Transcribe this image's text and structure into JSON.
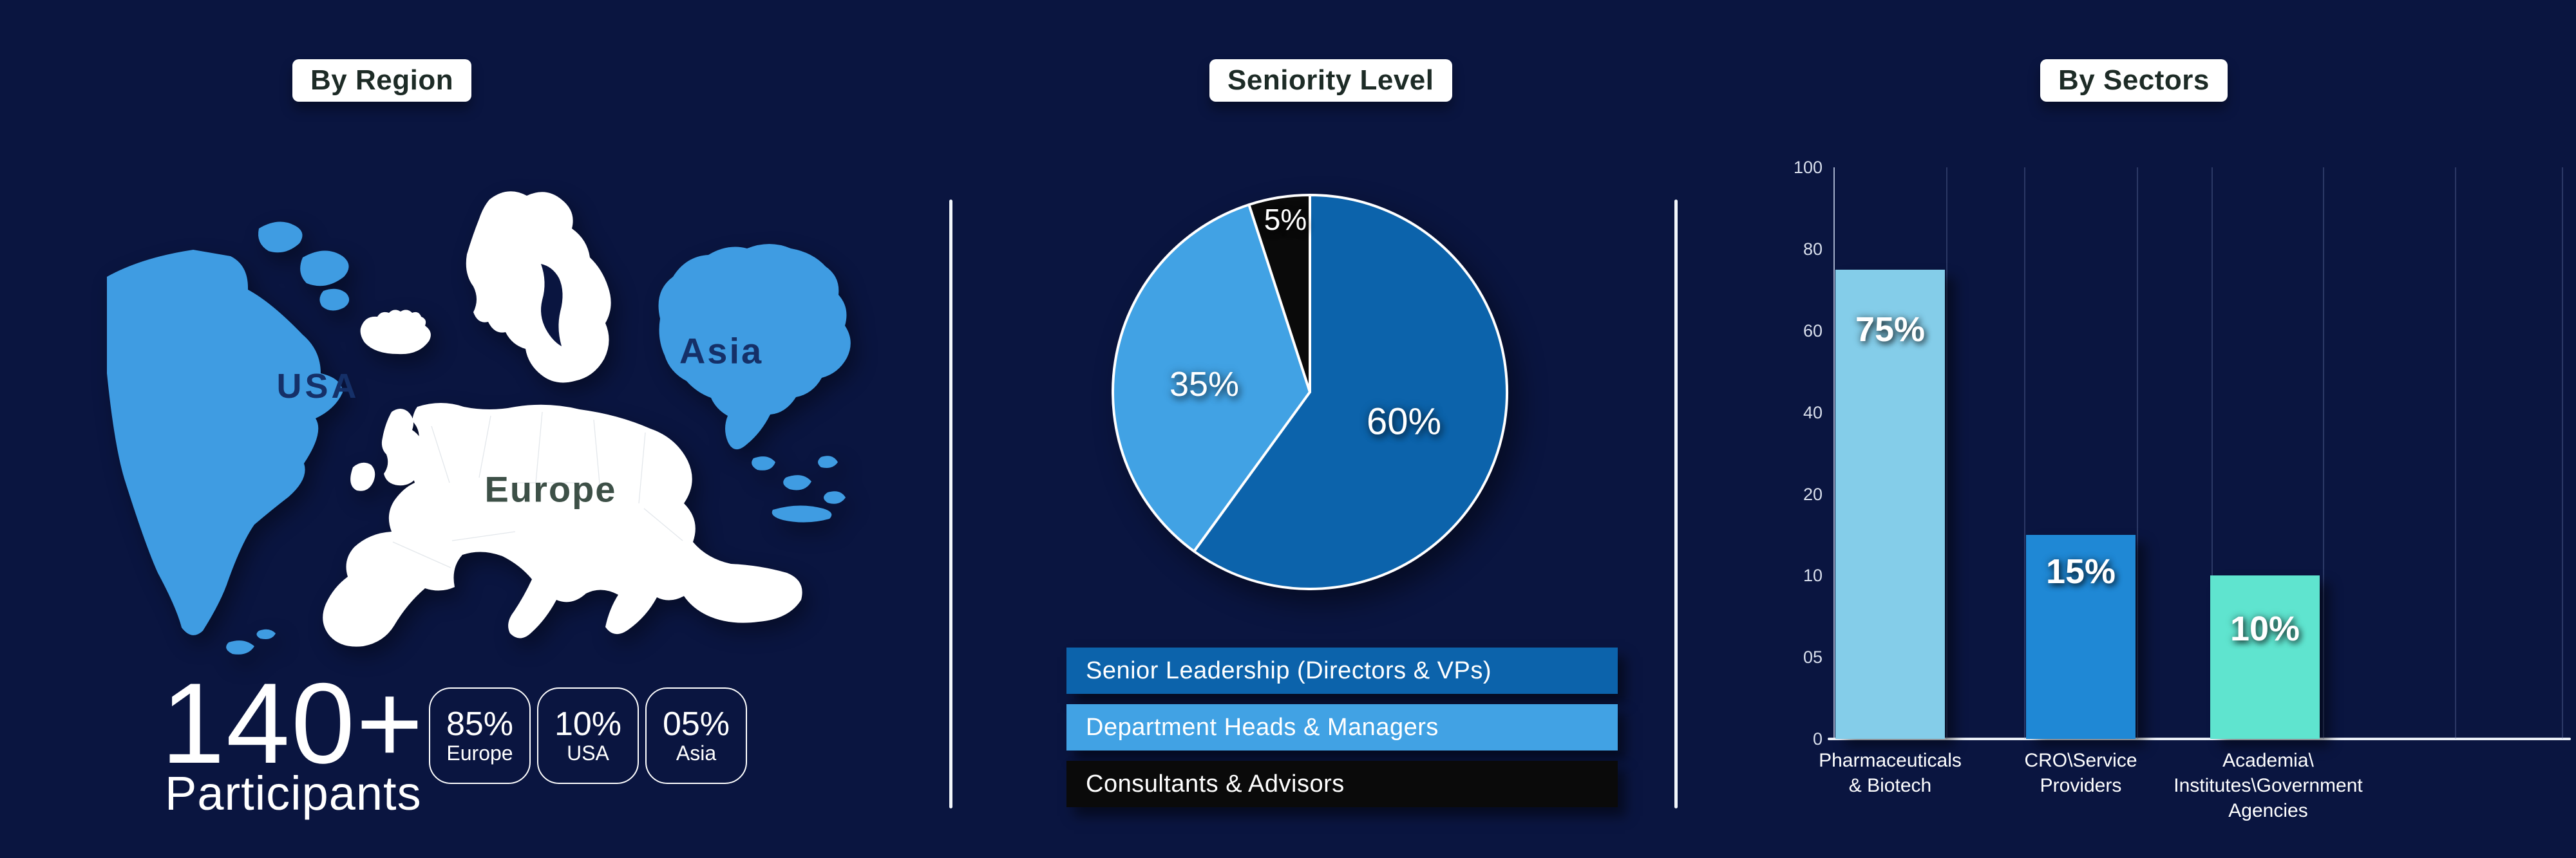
{
  "colors": {
    "background": "#0a1540",
    "panel_pill_bg": "#ffffff",
    "panel_pill_text": "#1d2b26",
    "map_usa": "#3f9ce2",
    "map_europe": "#ffffff",
    "map_asia": "#3f9ce2",
    "divider": "#f2f6fb"
  },
  "titles": {
    "region": "By Region",
    "seniority": "Seniority Level",
    "sectors": "By Sectors"
  },
  "region": {
    "map_labels": {
      "usa": "USA",
      "europe": "Europe",
      "asia": "Asia"
    },
    "map_colors": {
      "usa": "#3f9ce2",
      "europe": "#ffffff",
      "asia": "#3f9ce2"
    },
    "participants": {
      "number": "140+",
      "label": "Participants"
    },
    "stats": [
      {
        "value": "85%",
        "label": "Europe"
      },
      {
        "value": "10%",
        "label": "USA"
      },
      {
        "value": "05%",
        "label": "Asia"
      }
    ]
  },
  "chart_data": [
    {
      "type": "pie",
      "title": "Seniority Level",
      "labels": [
        "Senior Leadership (Directors & VPs)",
        "Department Heads & Managers",
        "Consultants & Advisors"
      ],
      "values": [
        60,
        35,
        5
      ],
      "value_labels": [
        "60%",
        "35%",
        "5%"
      ],
      "slice_colors": [
        "#0c63ab",
        "#41a2e4",
        "#0a0a0a"
      ],
      "start_angle": "top",
      "direction": "clockwise",
      "slice_border_color": "#ffffff",
      "legend_position": "bottom",
      "legend": [
        {
          "label": "Senior Leadership (Directors & VPs)",
          "color": "#0c63ab"
        },
        {
          "label": "Department Heads & Managers",
          "color": "#41a2e4"
        },
        {
          "label": "Consultants & Advisors",
          "color": "#0a0a0a"
        }
      ]
    },
    {
      "type": "bar",
      "title": "By Sectors",
      "categories": [
        "Pharmaceuticals & Biotech",
        "CRO\\Service Providers",
        "Academia\\Institutes\\Government Agencies"
      ],
      "category_lines": [
        [
          "Pharmaceuticals",
          "& Biotech"
        ],
        [
          "CRO\\Service",
          "Providers"
        ],
        [
          "Academia\\",
          "Institutes\\Government",
          "Agencies"
        ]
      ],
      "values": [
        75,
        15,
        10
      ],
      "value_labels": [
        "75%",
        "15%",
        "10%"
      ],
      "bar_colors": [
        "#84cde9",
        "#1f88d5",
        "#5fe4cf"
      ],
      "y_ticks": [
        {
          "label": "100",
          "value": 100
        },
        {
          "label": "80",
          "value": 80
        },
        {
          "label": "60",
          "value": 60
        },
        {
          "label": "40",
          "value": 40
        },
        {
          "label": "20",
          "value": 20
        },
        {
          "label": "10",
          "value": 10
        },
        {
          "label": "05",
          "value": 5
        },
        {
          "label": "0",
          "value": 0
        }
      ],
      "ylim": [
        0,
        100
      ],
      "grid": true
    }
  ]
}
